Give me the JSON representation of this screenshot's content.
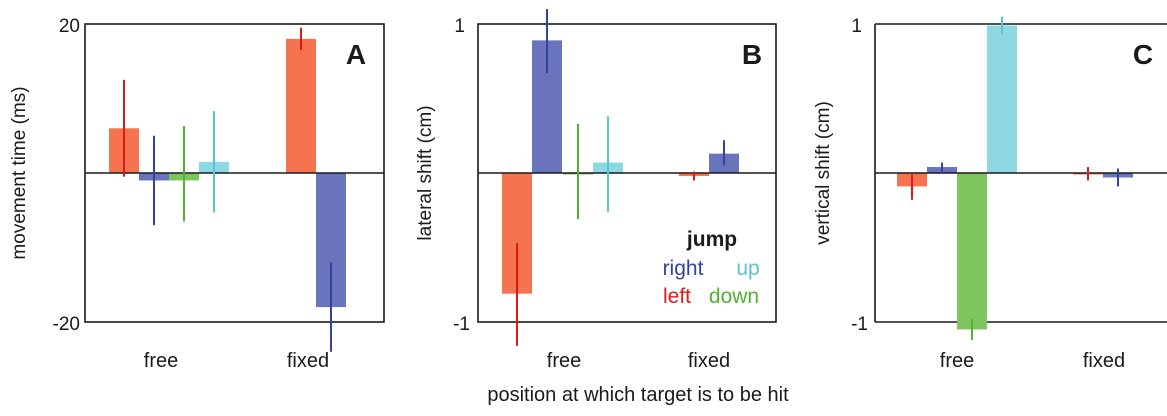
{
  "figure": {
    "xlabel": "position at which target is to be hit",
    "series_colors": {
      "right": "#6a74bd",
      "left": "#f5734f",
      "down": "#7dc55c",
      "up": "#8dd8e2"
    },
    "errorbar_colors": {
      "right": "#3344a0",
      "left": "#dd1a1a",
      "down": "#52b332",
      "up": "#5bc3d1"
    }
  },
  "legend": {
    "title": "jump",
    "items": [
      {
        "key": "right",
        "label": "right",
        "color": "#3344a0"
      },
      {
        "key": "up",
        "label": "up",
        "color": "#5bc3d1"
      },
      {
        "key": "left",
        "label": "left",
        "color": "#dd1a1a"
      },
      {
        "key": "down",
        "label": "down",
        "color": "#52b332"
      }
    ]
  },
  "chart_data": [
    {
      "type": "bar",
      "panel": "A",
      "ylabel": "movement time (ms)",
      "ylim": [
        -20,
        20
      ],
      "yticks": [
        "20",
        "-20"
      ],
      "ytick_values": [
        20,
        -20
      ],
      "categories": [
        "free",
        "fixed"
      ],
      "series": [
        {
          "name": "left",
          "values": [
            6,
            18
          ],
          "err": [
            [
              -0.5,
              12.5
            ],
            [
              16.5,
              19.5
            ]
          ]
        },
        {
          "name": "right",
          "values": [
            -1,
            -18
          ],
          "err": [
            [
              -7,
              5
            ],
            [
              -24,
              -12
            ]
          ]
        },
        {
          "name": "down",
          "values": [
            -1,
            null
          ],
          "err": [
            [
              -6.5,
              6.3
            ],
            null
          ]
        },
        {
          "name": "up",
          "values": [
            1.5,
            null
          ],
          "err": [
            [
              -5.3,
              8.3
            ],
            null
          ]
        }
      ]
    },
    {
      "type": "bar",
      "panel": "B",
      "ylabel": "lateral shift (cm)",
      "ylim": [
        -1,
        1
      ],
      "yticks": [
        "1",
        "-1"
      ],
      "ytick_values": [
        1,
        -1
      ],
      "categories": [
        "free",
        "fixed"
      ],
      "series": [
        {
          "name": "left",
          "values": [
            -0.81,
            -0.02
          ],
          "err": [
            [
              -1.16,
              -0.47
            ],
            [
              -0.05,
              0.01
            ]
          ]
        },
        {
          "name": "right",
          "values": [
            0.89,
            0.13
          ],
          "err": [
            [
              0.67,
              1.1
            ],
            [
              0.05,
              0.22
            ]
          ]
        },
        {
          "name": "down",
          "values": [
            0.0,
            null
          ],
          "err": [
            [
              -0.31,
              0.33
            ],
            null
          ]
        },
        {
          "name": "up",
          "values": [
            0.07,
            null
          ],
          "err": [
            [
              -0.26,
              0.38
            ],
            null
          ]
        }
      ]
    },
    {
      "type": "bar",
      "panel": "C",
      "ylabel": "vertical shift (cm)",
      "ylim": [
        -1,
        1
      ],
      "yticks": [
        "1",
        "-1"
      ],
      "ytick_values": [
        1,
        -1
      ],
      "categories": [
        "free",
        "fixed"
      ],
      "series": [
        {
          "name": "left",
          "values": [
            -0.09,
            -0.01
          ],
          "err": [
            [
              -0.18,
              -0.01
            ],
            [
              -0.05,
              0.04
            ]
          ]
        },
        {
          "name": "right",
          "values": [
            0.04,
            -0.03
          ],
          "err": [
            [
              0.0,
              0.07
            ],
            [
              -0.09,
              0.03
            ]
          ]
        },
        {
          "name": "down",
          "values": [
            -1.05,
            null
          ],
          "err": [
            [
              -1.12,
              -0.98
            ],
            null
          ]
        },
        {
          "name": "up",
          "values": [
            0.99,
            null
          ],
          "err": [
            [
              0.93,
              1.05
            ],
            null
          ]
        }
      ]
    }
  ]
}
